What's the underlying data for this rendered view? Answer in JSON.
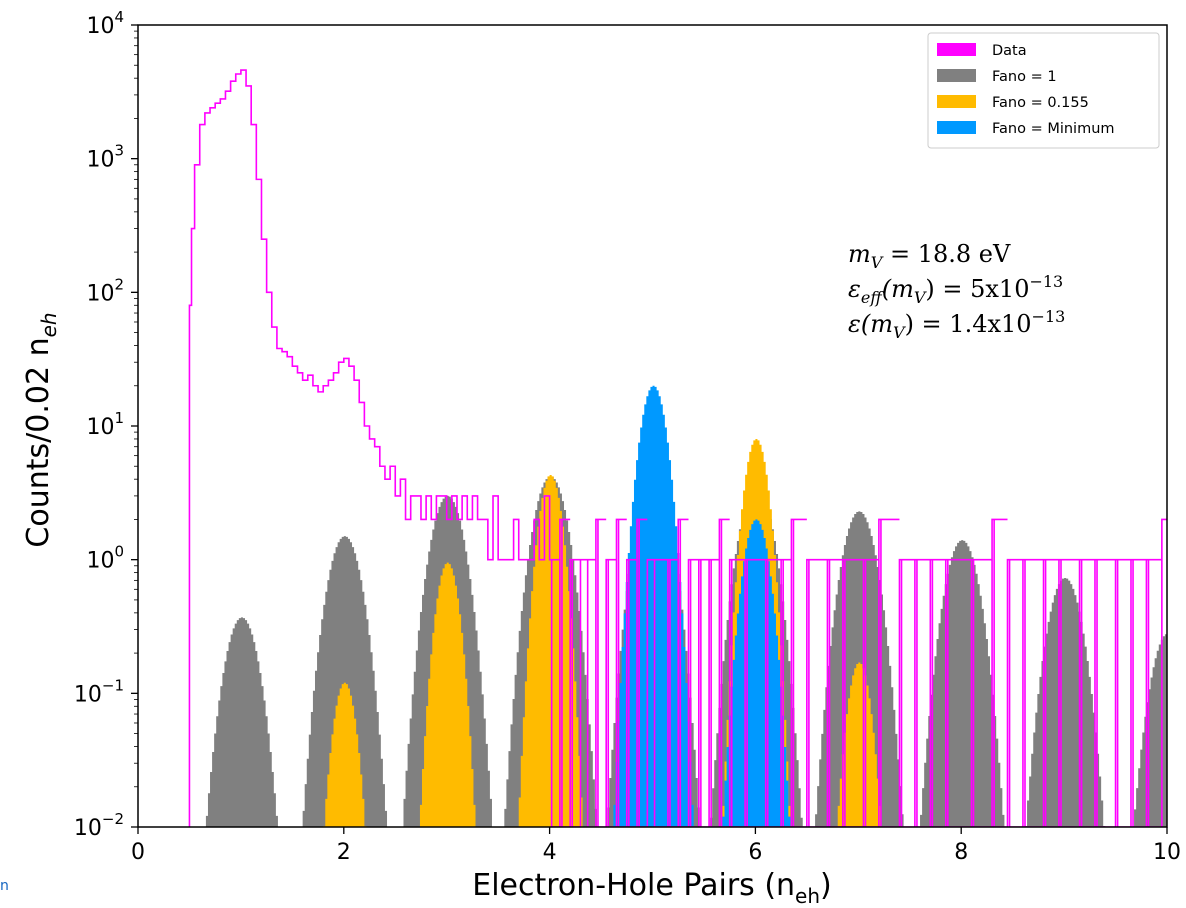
{
  "chart_data": {
    "type": "histogram",
    "xlabel_main": "Electron-Hole Pairs (n",
    "xlabel_sub": "eh",
    "xlabel_end": ")",
    "ylabel_main": "Counts/0.02 n",
    "ylabel_sub": "eh",
    "xlim": [
      0,
      10
    ],
    "ylim": [
      0.01,
      10000
    ],
    "yscale": "log",
    "x_ticks": [
      {
        "value": 0,
        "label": "0"
      },
      {
        "value": 2,
        "label": "2"
      },
      {
        "value": 4,
        "label": "4"
      },
      {
        "value": 6,
        "label": "6"
      },
      {
        "value": 8,
        "label": "8"
      },
      {
        "value": 10,
        "label": "10"
      }
    ],
    "y_ticks": [
      {
        "value": 0.01,
        "base": "10",
        "exp": "−2"
      },
      {
        "value": 0.1,
        "base": "10",
        "exp": "−1"
      },
      {
        "value": 1,
        "base": "10",
        "exp": "0"
      },
      {
        "value": 10,
        "base": "10",
        "exp": "1"
      },
      {
        "value": 100,
        "base": "10",
        "exp": "2"
      },
      {
        "value": 1000,
        "base": "10",
        "exp": "3"
      },
      {
        "value": 10000,
        "base": "10",
        "exp": "4"
      }
    ],
    "bin_width": 0.02,
    "legend_position": "top-right",
    "legend": [
      {
        "label": "Data",
        "color": "#ff00ff"
      },
      {
        "label": "Fano = 1",
        "color": "#808080"
      },
      {
        "label": "Fano = 0.155",
        "color": "#ffbb00"
      },
      {
        "label": "Fano = Minimum",
        "color": "#0099ff"
      }
    ],
    "annotations": [
      {
        "lines": [
          "m",
          "V",
          " = 18.8 eV"
        ]
      },
      {
        "lines": [
          "ε",
          "eff",
          "(m",
          "V",
          ") = 5x10",
          "−13"
        ]
      },
      {
        "lines": [
          "ε(m",
          "V",
          ") = 1.4x10",
          "−13"
        ]
      }
    ],
    "series": [
      {
        "name": "Fano = 1",
        "color": "#808080",
        "sigma": 0.13,
        "peaks": [
          {
            "n": 1,
            "height": 0.37
          },
          {
            "n": 2,
            "height": 1.5
          },
          {
            "n": 3,
            "height": 3.0
          },
          {
            "n": 4,
            "height": 4.2
          },
          {
            "n": 5,
            "height": 4.3
          },
          {
            "n": 6,
            "height": 3.6
          },
          {
            "n": 7,
            "height": 2.3
          },
          {
            "n": 8,
            "height": 1.4
          },
          {
            "n": 9,
            "height": 0.73
          },
          {
            "n": 10,
            "height": 0.28
          }
        ]
      },
      {
        "name": "Fano = 0.155",
        "color": "#ffbb00",
        "sigma": 0.09,
        "peaks": [
          {
            "n": 2,
            "height": 0.12
          },
          {
            "n": 3,
            "height": 0.95
          },
          {
            "n": 4,
            "height": 4.3
          },
          {
            "n": 5,
            "height": 9.0
          },
          {
            "n": 6,
            "height": 8.0
          },
          {
            "n": 7,
            "height": 0.17
          }
        ]
      },
      {
        "name": "Fano = Minimum",
        "color": "#0099ff",
        "sigma": 0.1,
        "peaks": [
          {
            "n": 5,
            "height": 20
          },
          {
            "n": 6,
            "height": 2.0
          }
        ]
      }
    ],
    "data_series": {
      "name": "Data",
      "color": "#ff00ff",
      "points": [
        [
          0.5,
          80
        ],
        [
          0.52,
          300
        ],
        [
          0.55,
          900
        ],
        [
          0.6,
          1800
        ],
        [
          0.65,
          2200
        ],
        [
          0.7,
          2400
        ],
        [
          0.75,
          2600
        ],
        [
          0.8,
          2800
        ],
        [
          0.85,
          3200
        ],
        [
          0.9,
          3800
        ],
        [
          0.95,
          4300
        ],
        [
          1.0,
          4600
        ],
        [
          1.05,
          3500
        ],
        [
          1.1,
          1800
        ],
        [
          1.15,
          700
        ],
        [
          1.2,
          250
        ],
        [
          1.25,
          100
        ],
        [
          1.3,
          55
        ],
        [
          1.35,
          38
        ],
        [
          1.4,
          36
        ],
        [
          1.45,
          33
        ],
        [
          1.5,
          28
        ],
        [
          1.55,
          25
        ],
        [
          1.6,
          22
        ],
        [
          1.65,
          24
        ],
        [
          1.7,
          20
        ],
        [
          1.75,
          18
        ],
        [
          1.8,
          20
        ],
        [
          1.85,
          22
        ],
        [
          1.9,
          25
        ],
        [
          1.95,
          30
        ],
        [
          2.0,
          32
        ],
        [
          2.05,
          28
        ],
        [
          2.1,
          22
        ],
        [
          2.15,
          15
        ],
        [
          2.2,
          10
        ],
        [
          2.25,
          8
        ],
        [
          2.3,
          7
        ],
        [
          2.35,
          5
        ],
        [
          2.4,
          4
        ],
        [
          2.45,
          5
        ],
        [
          2.5,
          3
        ],
        [
          2.55,
          4
        ],
        [
          2.6,
          2
        ],
        [
          2.65,
          3
        ],
        [
          2.7,
          3
        ],
        [
          2.75,
          2
        ],
        [
          2.8,
          3
        ],
        [
          2.85,
          2
        ],
        [
          2.9,
          3
        ],
        [
          2.95,
          3
        ],
        [
          3.0,
          2
        ],
        [
          3.05,
          3
        ],
        [
          3.1,
          2
        ],
        [
          3.15,
          3
        ],
        [
          3.2,
          2
        ],
        [
          3.25,
          3
        ],
        [
          3.3,
          2
        ],
        [
          3.35,
          2
        ],
        [
          3.4,
          1
        ],
        [
          3.45,
          3
        ],
        [
          3.5,
          1
        ],
        [
          3.55,
          1
        ],
        [
          3.6,
          1
        ],
        [
          3.65,
          2
        ],
        [
          3.7,
          1
        ],
        [
          3.75,
          1
        ],
        [
          3.8,
          1
        ],
        [
          3.85,
          2
        ],
        [
          3.9,
          1
        ],
        [
          3.95,
          3
        ],
        [
          4.0,
          1
        ],
        [
          4.1,
          2
        ],
        [
          4.2,
          1
        ],
        [
          4.3,
          1
        ],
        [
          4.35,
          1
        ],
        [
          4.45,
          2
        ],
        [
          4.55,
          1
        ],
        [
          4.65,
          2
        ],
        [
          4.75,
          1
        ],
        [
          4.85,
          2
        ],
        [
          4.95,
          1
        ],
        [
          5.0,
          1
        ],
        [
          5.15,
          1
        ],
        [
          5.25,
          2
        ],
        [
          5.35,
          1
        ],
        [
          5.45,
          1
        ],
        [
          5.55,
          1
        ],
        [
          5.65,
          2
        ],
        [
          5.75,
          1
        ],
        [
          5.9,
          1
        ],
        [
          6.1,
          1
        ],
        [
          6.25,
          1
        ],
        [
          6.35,
          2
        ],
        [
          6.5,
          1
        ],
        [
          6.7,
          1
        ],
        [
          6.85,
          1
        ],
        [
          7.05,
          1
        ],
        [
          7.2,
          2
        ],
        [
          7.4,
          1
        ],
        [
          7.55,
          1
        ],
        [
          7.7,
          1
        ],
        [
          7.85,
          1
        ],
        [
          8.1,
          1
        ],
        [
          8.3,
          2
        ],
        [
          8.45,
          1
        ],
        [
          8.6,
          1
        ],
        [
          8.8,
          1
        ],
        [
          8.95,
          1
        ],
        [
          9.15,
          1
        ],
        [
          9.3,
          1
        ],
        [
          9.5,
          1
        ],
        [
          9.65,
          1
        ],
        [
          9.8,
          1
        ],
        [
          9.95,
          2
        ]
      ]
    }
  }
}
